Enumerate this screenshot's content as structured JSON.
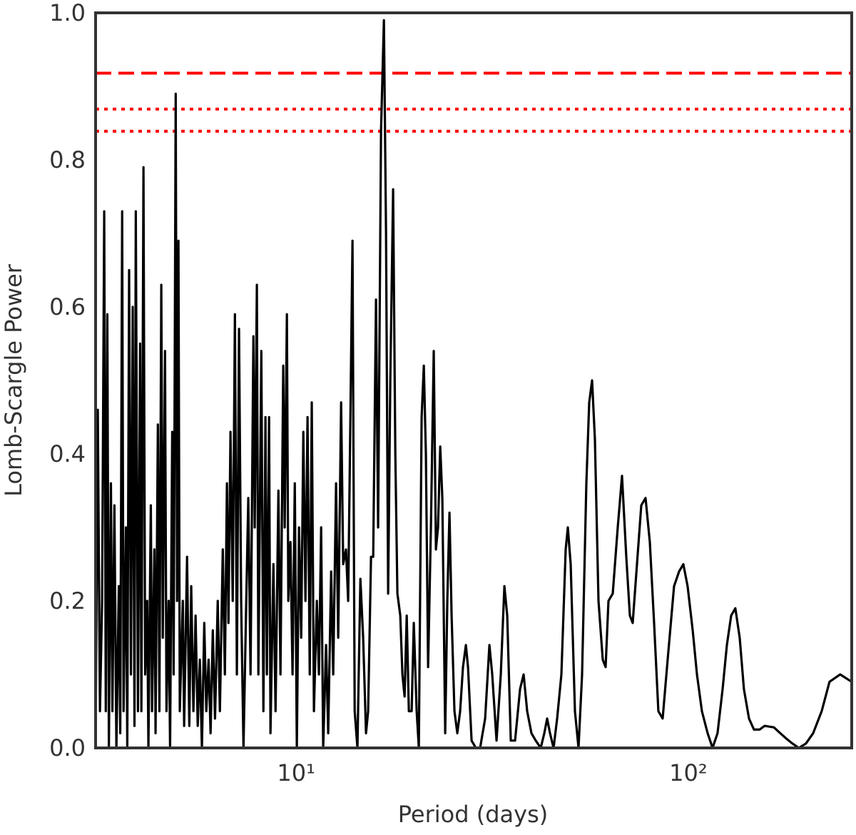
{
  "chart_data": {
    "type": "line",
    "xlabel": "Period (days)",
    "ylabel": "Lomb-Scargle Power",
    "xscale": "log",
    "xlim": [
      3.08,
      261
    ],
    "ylim": [
      0,
      1
    ],
    "xticks": [
      {
        "value": 10,
        "label": "10¹"
      },
      {
        "value": 100,
        "label": "10²"
      }
    ],
    "yticks": [
      {
        "value": 0,
        "label": "0.0"
      },
      0.2,
      0.4,
      0.6,
      0.8,
      {
        "value": 1,
        "label": "1.0"
      }
    ],
    "grid": false,
    "color": "#000000",
    "hlines": [
      {
        "value": 0.918,
        "style": "dashed",
        "color": "#ff0000"
      },
      {
        "value": 0.869,
        "style": "dotted",
        "color": "#ff0000"
      },
      {
        "value": 0.839,
        "style": "dotted",
        "color": "#ff0000"
      }
    ],
    "x": [
      3.08,
      3.12,
      3.16,
      3.2,
      3.24,
      3.27,
      3.3,
      3.33,
      3.37,
      3.4,
      3.44,
      3.48,
      3.53,
      3.56,
      3.6,
      3.63,
      3.68,
      3.71,
      3.75,
      3.79,
      3.83,
      3.87,
      3.9,
      3.95,
      4.0,
      4.03,
      4.08,
      4.12,
      4.17,
      4.2,
      4.26,
      4.29,
      4.35,
      4.38,
      4.44,
      4.48,
      4.53,
      4.57,
      4.63,
      4.67,
      4.73,
      4.77,
      4.83,
      4.87,
      4.93,
      4.97,
      5.01,
      5.05,
      5.14,
      5.18,
      5.27,
      5.34,
      5.4,
      5.47,
      5.54,
      5.61,
      5.68,
      5.75,
      5.83,
      5.9,
      5.98,
      6.05,
      6.13,
      6.21,
      6.31,
      6.39,
      6.5,
      6.58,
      6.66,
      6.72,
      6.8,
      6.89,
      6.98,
      7.06,
      7.15,
      7.24,
      7.34,
      7.46,
      7.55,
      7.65,
      7.78,
      7.84,
      7.94,
      8.01,
      8.15,
      8.25,
      8.35,
      8.42,
      8.53,
      8.6,
      8.75,
      8.86,
      9.01,
      9.12,
      9.27,
      9.35,
      9.47,
      9.55,
      9.67,
      9.79,
      9.92,
      10.04,
      10.17,
      10.3,
      10.43,
      10.56,
      10.69,
      10.83,
      10.96,
      11.1,
      11.29,
      11.43,
      11.58,
      11.72,
      11.92,
      12.07,
      12.28,
      12.43,
      12.64,
      12.8,
      13.02,
      13.18,
      13.4,
      13.57,
      13.75,
      13.92,
      14.1,
      14.33,
      14.58,
      14.82,
      15.07,
      15.26,
      15.52,
      15.72,
      15.98,
      16.18,
      16.46,
      16.74,
      16.95,
      17.16,
      17.38,
      17.67,
      17.9,
      18.12,
      18.43,
      18.66,
      18.9,
      19.14,
      19.38,
      19.7,
      19.95,
      20.29,
      20.55,
      20.89,
      21.16,
      21.42,
      21.7,
      22.06,
      22.43,
      22.72,
      23.0,
      23.3,
      23.59,
      23.99,
      24.29,
      24.6,
      24.91,
      25.33,
      25.76,
      26.19,
      26.63,
      27.09,
      27.43,
      28.01,
      28.72,
      29.45,
      30.33,
      31.1,
      31.62,
      32.43,
      33.25,
      33.96,
      34.53,
      35.26,
      36.16,
      37.23,
      38.02,
      38.82,
      39.81,
      40.82,
      42.04,
      42.93,
      43.65,
      44.39,
      45.33,
      46.29,
      47.46,
      48.67,
      49.29,
      50.12,
      51.39,
      52.48,
      53.59,
      54.95,
      55.88,
      56.83,
      57.78,
      59.01,
      60.51,
      61.53,
      62.57,
      64.16,
      66.07,
      67.75,
      69.47,
      70.95,
      72.14,
      73.97,
      75.86,
      77.79,
      79.77,
      81.79,
      83.87,
      86.01,
      88.57,
      91.96,
      94.71,
      97.11,
      99.58,
      102.6,
      105.2,
      108.3,
      112.0,
      115.3,
      118.7,
      122.3,
      125.4,
      128.6,
      131.8,
      135.2,
      138.6,
      142.8,
      147.0,
      152.0,
      156.5,
      165.3,
      171.6,
      177.5,
      184.3,
      191.3,
      199.5,
      208.1,
      218.8,
      229.1,
      243.9,
      260.9
    ],
    "values": [
      0,
      0.46,
      0.05,
      0.2,
      0.73,
      0.05,
      0.59,
      0,
      0.36,
      0.05,
      0.33,
      0,
      0.22,
      0.02,
      0.73,
      0.05,
      0.3,
      0,
      0.65,
      0.1,
      0.6,
      0.03,
      0.73,
      0.05,
      0.55,
      0.05,
      0.79,
      0.1,
      0.2,
      0,
      0.33,
      0.05,
      0.27,
      0.02,
      0.44,
      0.05,
      0.63,
      0.15,
      0.54,
      0.05,
      0.2,
      0,
      0.43,
      0.1,
      0.89,
      0.2,
      0.69,
      0.05,
      0.2,
      0.03,
      0.26,
      0.03,
      0.22,
      0.05,
      0.18,
      0.03,
      0.12,
      0,
      0.17,
      0.05,
      0.12,
      0.02,
      0.16,
      0.04,
      0.2,
      0.05,
      0.27,
      0.1,
      0.36,
      0.17,
      0.43,
      0.2,
      0.59,
      0.1,
      0.57,
      0.2,
      0,
      0.2,
      0.34,
      0.1,
      0.56,
      0.3,
      0.63,
      0.1,
      0.54,
      0.05,
      0.45,
      0.1,
      0.45,
      0.02,
      0.25,
      0.05,
      0.35,
      0.1,
      0.52,
      0.3,
      0.59,
      0.2,
      0.28,
      0.1,
      0.36,
      0,
      0.3,
      0.15,
      0.43,
      0.2,
      0.45,
      0.1,
      0.47,
      0.05,
      0.2,
      0.1,
      0.3,
      0,
      0.14,
      0.02,
      0.24,
      0.1,
      0.36,
      0.15,
      0.47,
      0.25,
      0.27,
      0.2,
      0.45,
      0.69,
      0.05,
      0,
      0.23,
      0.15,
      0.02,
      0.05,
      0.26,
      0.26,
      0.61,
      0.3,
      0.84,
      0.99,
      0.7,
      0.21,
      0.5,
      0.76,
      0.4,
      0.21,
      0.18,
      0.1,
      0.07,
      0.18,
      0.05,
      0.05,
      0.17,
      0.05,
      0,
      0.45,
      0.52,
      0.4,
      0.11,
      0.3,
      0.54,
      0.27,
      0.3,
      0.41,
      0.34,
      0.02,
      0.2,
      0.32,
      0.18,
      0.05,
      0.02,
      0.05,
      0.11,
      0.14,
      0.11,
      0.01,
      0,
      0,
      0.04,
      0.14,
      0.1,
      0.01,
      0.1,
      0.22,
      0.18,
      0.01,
      0.01,
      0.08,
      0.1,
      0.05,
      0.02,
      0.01,
      0,
      0.02,
      0.04,
      0.02,
      0,
      0.04,
      0.1,
      0.27,
      0.3,
      0.25,
      0.05,
      0,
      0.1,
      0.36,
      0.47,
      0.5,
      0.42,
      0.2,
      0.12,
      0.11,
      0.2,
      0.21,
      0.3,
      0.37,
      0.26,
      0.18,
      0.17,
      0.25,
      0.33,
      0.34,
      0.28,
      0.17,
      0.05,
      0.04,
      0.12,
      0.22,
      0.24,
      0.25,
      0.22,
      0.16,
      0.1,
      0.05,
      0.02,
      0,
      0.02,
      0.08,
      0.14,
      0.18,
      0.19,
      0.15,
      0.08,
      0.04,
      0.025,
      0.025,
      0.03,
      0.028,
      0.02,
      0.013,
      0.006,
      0,
      0.006,
      0.02,
      0.05,
      0.09,
      0.1,
      0.09
    ]
  }
}
